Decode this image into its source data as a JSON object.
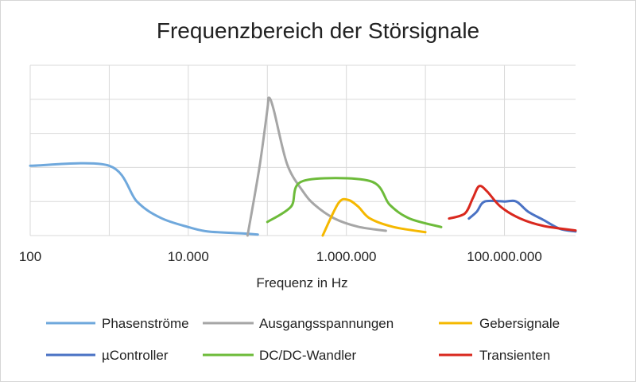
{
  "chart_data": {
    "type": "line",
    "title": "Frequenzbereich der Störsignale",
    "xlabel": "Frequenz in Hz",
    "ylabel": "",
    "x_scale": "log10",
    "xlim_log10": [
      2,
      8.9
    ],
    "ylim": [
      0,
      5
    ],
    "x_ticks": [
      {
        "log10": 2,
        "label": "100"
      },
      {
        "log10": 4,
        "label": "10.000"
      },
      {
        "log10": 6,
        "label": "1.000.000"
      },
      {
        "log10": 8,
        "label": "100.000.000"
      }
    ],
    "grid": true,
    "legend_position": "bottom",
    "series": [
      {
        "name": "Phasenströme",
        "color": "#6fa8dc",
        "points": [
          [
            2.0,
            2.05
          ],
          [
            3.0,
            2.05
          ],
          [
            3.35,
            1.0
          ],
          [
            3.65,
            0.52
          ],
          [
            4.0,
            0.25
          ],
          [
            4.25,
            0.12
          ],
          [
            4.7,
            0.06
          ],
          [
            4.88,
            0.03
          ]
        ]
      },
      {
        "name": "Ausgangsspannungen",
        "color": "#a6a6a6",
        "points": [
          [
            4.75,
            0.0
          ],
          [
            4.9,
            2.0
          ],
          [
            5.0,
            3.7
          ],
          [
            5.02,
            4.05
          ],
          [
            5.08,
            3.7
          ],
          [
            5.25,
            2.1
          ],
          [
            5.45,
            1.3
          ],
          [
            5.6,
            0.9
          ],
          [
            5.85,
            0.5
          ],
          [
            6.15,
            0.26
          ],
          [
            6.5,
            0.14
          ]
        ]
      },
      {
        "name": "Gebersignale",
        "color": "#f5b800",
        "points": [
          [
            5.7,
            0.0
          ],
          [
            5.9,
            0.95
          ],
          [
            6.02,
            1.05
          ],
          [
            6.15,
            0.85
          ],
          [
            6.3,
            0.5
          ],
          [
            6.6,
            0.25
          ],
          [
            7.0,
            0.1
          ]
        ]
      },
      {
        "name": "µController",
        "color": "#4a72c4",
        "points": [
          [
            7.55,
            0.5
          ],
          [
            7.65,
            0.7
          ],
          [
            7.75,
            1.0
          ],
          [
            8.0,
            1.0
          ],
          [
            8.15,
            1.0
          ],
          [
            8.3,
            0.7
          ],
          [
            8.5,
            0.45
          ],
          [
            8.7,
            0.2
          ],
          [
            8.9,
            0.12
          ]
        ]
      },
      {
        "name": "DC/DC-Wandler",
        "color": "#6dbb3a",
        "points": [
          [
            5.0,
            0.4
          ],
          [
            5.3,
            0.85
          ],
          [
            5.45,
            1.6
          ],
          [
            6.3,
            1.6
          ],
          [
            6.55,
            0.9
          ],
          [
            6.8,
            0.5
          ],
          [
            7.2,
            0.25
          ]
        ]
      },
      {
        "name": "Transienten",
        "color": "#d9281e",
        "points": [
          [
            7.3,
            0.5
          ],
          [
            7.5,
            0.65
          ],
          [
            7.6,
            1.1
          ],
          [
            7.68,
            1.45
          ],
          [
            7.78,
            1.3
          ],
          [
            7.95,
            0.85
          ],
          [
            8.2,
            0.5
          ],
          [
            8.5,
            0.28
          ],
          [
            8.9,
            0.15
          ]
        ]
      }
    ]
  }
}
